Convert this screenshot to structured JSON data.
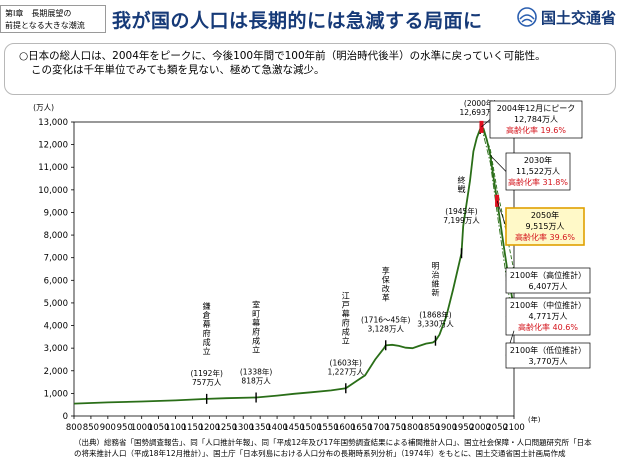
{
  "header": {
    "chapter_line1": "第Ⅰ章　長期展望の",
    "chapter_line2": "前提となる大きな潮流",
    "title": "我が国の人口は長期的には急減する局面に",
    "ministry": "国土交通省"
  },
  "summary": {
    "line1": "○日本の総人口は、2004年をピークに、今後100年間で100年前（明治時代後半）の水準に戻っていく可能性。",
    "line2": "この変化は千年単位でみても類を見ない、極めて急激な減少。"
  },
  "source_note": {
    "line1": "（出典）総務省「国勢調査報告」、同「人口推計年報」、同「平成12年及び17年国勢調査結果による補間推計人口」、国立社会保障・人口問題研究所「日本",
    "line2": "の将来推計人口（平成18年12月推計）」、国土庁「日本列島における人口分布の長期時系列分析」（1974年）をもとに、国土交通省国土計画局作成"
  },
  "colors": {
    "line": "#2a6e18",
    "title_blue": "#163a78",
    "marker_red": "#e01020",
    "rate_red": "#d4141c",
    "box_2050_border": "#e0a000",
    "box_2050_fill": "#fff9c8"
  },
  "chart_data": {
    "type": "line",
    "y_unit": "(万人)",
    "x_unit": "(年)",
    "xlim": [
      800,
      2100
    ],
    "ylim": [
      0,
      13000
    ],
    "x_ticks": [
      "800",
      "850",
      "900",
      "950",
      "1000",
      "1050",
      "1100",
      "1150",
      "1200",
      "1250",
      "1300",
      "1350",
      "1400",
      "1450",
      "1500",
      "1550",
      "1600",
      "1650",
      "1700",
      "1750",
      "1800",
      "1850",
      "1900",
      "1950",
      "2000",
      "2050",
      "2100"
    ],
    "y_ticks": [
      "0",
      "1,000",
      "2,000",
      "3,000",
      "4,000",
      "5,000",
      "6,000",
      "7,000",
      "8,000",
      "9,000",
      "10,000",
      "11,000",
      "12,000",
      "13,000"
    ],
    "series": [
      {
        "style": "solid",
        "points": [
          [
            800,
            550
          ],
          [
            900,
            600
          ],
          [
            1000,
            640
          ],
          [
            1100,
            690
          ],
          [
            1192,
            757
          ],
          [
            1250,
            785
          ],
          [
            1338,
            818
          ],
          [
            1400,
            900
          ],
          [
            1450,
            980
          ],
          [
            1500,
            1050
          ],
          [
            1560,
            1130
          ],
          [
            1603,
            1227
          ],
          [
            1630,
            1500
          ],
          [
            1660,
            1800
          ],
          [
            1690,
            2500
          ],
          [
            1716,
            3000
          ],
          [
            1721,
            3128
          ],
          [
            1740,
            3150
          ],
          [
            1760,
            3100
          ],
          [
            1780,
            3020
          ],
          [
            1800,
            3000
          ],
          [
            1820,
            3100
          ],
          [
            1840,
            3200
          ],
          [
            1860,
            3250
          ],
          [
            1868,
            3330
          ],
          [
            1880,
            3600
          ],
          [
            1900,
            4400
          ],
          [
            1920,
            5600
          ],
          [
            1945,
            7199
          ],
          [
            1950,
            8400
          ],
          [
            1960,
            9400
          ],
          [
            1970,
            10400
          ],
          [
            1980,
            11700
          ],
          [
            1990,
            12300
          ],
          [
            2000,
            12693
          ],
          [
            2004,
            12784
          ],
          [
            2010,
            12700
          ],
          [
            2020,
            12200
          ],
          [
            2030,
            11522
          ],
          [
            2040,
            10500
          ],
          [
            2050,
            9515
          ],
          [
            2060,
            8500
          ],
          [
            2070,
            7500
          ],
          [
            2080,
            6500
          ],
          [
            2090,
            5600
          ],
          [
            2100,
            4771
          ]
        ]
      },
      {
        "style": "dashed",
        "points": [
          [
            2004,
            12784
          ],
          [
            2030,
            11800
          ],
          [
            2050,
            10000
          ],
          [
            2075,
            8300
          ],
          [
            2100,
            6407
          ]
        ]
      },
      {
        "style": "dashdot",
        "points": [
          [
            2004,
            12784
          ],
          [
            2030,
            11200
          ],
          [
            2050,
            9000
          ],
          [
            2075,
            6400
          ],
          [
            2100,
            3770
          ]
        ]
      }
    ],
    "era_labels": [
      {
        "name": "鎌倉幕府成立",
        "year": "(1192年)",
        "pop": "757万人",
        "x": 1192,
        "y": 757
      },
      {
        "name": "室町幕府成立",
        "year": "(1338年)",
        "pop": "818万人",
        "x": 1338,
        "y": 818
      },
      {
        "name": "江戸幕府成立",
        "year": "(1603年)",
        "pop": "1,227万人",
        "x": 1603,
        "y": 1227
      },
      {
        "name": "享保改革",
        "year": "(1716～45年)",
        "pop": "3,128万人",
        "x": 1721,
        "y": 3128
      },
      {
        "name": "明治維新",
        "year": "(1868年)",
        "pop": "3,330万人",
        "x": 1868,
        "y": 3330
      },
      {
        "name": "終戦",
        "year": "(1945年)",
        "pop": "7,199万人",
        "x": 1945,
        "y": 7199
      },
      {
        "name": "",
        "year": "(2000年)",
        "pop": "12,693万人",
        "x": 2000,
        "y": 12693
      }
    ],
    "callouts": [
      {
        "id": "peak",
        "line1": "2004年12月にピーク",
        "line2": "12,784万人",
        "rate": "高齢化率 19.6%",
        "x": 2004,
        "y": 12784
      },
      {
        "id": "2030",
        "line1": "2030年",
        "line2": "11,522万人",
        "rate": "高齢化率 31.8%",
        "x": 2030,
        "y": 11522
      },
      {
        "id": "2050",
        "line1": "2050年",
        "line2": "9,515万人",
        "rate": "高齢化率 39.6%",
        "x": 2050,
        "y": 9515
      },
      {
        "id": "high",
        "line1": "2100年（高位推計）",
        "line2": "6,407万人",
        "rate": "",
        "x": 2100,
        "y": 6407
      },
      {
        "id": "mid",
        "line1": "2100年（中位推計）",
        "line2": "4,771万人",
        "rate": "高齢化率 40.6%",
        "x": 2100,
        "y": 4771
      },
      {
        "id": "low",
        "line1": "2100年（低位推計）",
        "line2": "3,770万人",
        "rate": "",
        "x": 2100,
        "y": 3770
      }
    ]
  }
}
